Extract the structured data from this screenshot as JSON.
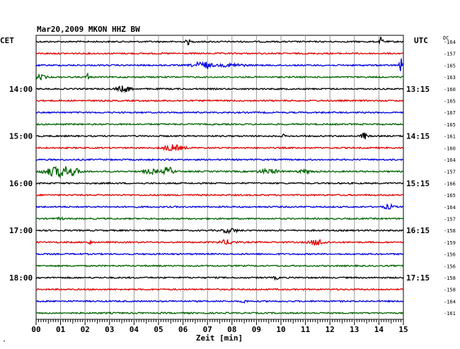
{
  "chart_data": {
    "type": "line",
    "title": "Mar20,2009   MKON HHZ BW",
    "xlabel": "Zeit [min]",
    "x_ticks": [
      "00",
      "01",
      "02",
      "03",
      "04",
      "05",
      "06",
      "07",
      "08",
      "09",
      "10",
      "11",
      "12",
      "13",
      "14",
      "15"
    ],
    "xlim": [
      0,
      15
    ],
    "left_timezone": "CET",
    "right_timezone": "UTC",
    "dc_label": "DC",
    "left_hour_labels": [
      {
        "label": "14:00",
        "row": 4
      },
      {
        "label": "15:00",
        "row": 8
      },
      {
        "label": "16:00",
        "row": 12
      },
      {
        "label": "17:00",
        "row": 16
      },
      {
        "label": "18:00",
        "row": 20
      }
    ],
    "right_hour_labels": [
      {
        "label": "13:15",
        "row": 4
      },
      {
        "label": "14:15",
        "row": 8
      },
      {
        "label": "15:15",
        "row": 12
      },
      {
        "label": "16:15",
        "row": 16
      },
      {
        "label": "17:15",
        "row": 20
      }
    ],
    "dc_offsets": [
      "-164",
      "-157",
      "-165",
      "-163",
      "-160",
      "-165",
      "-167",
      "-165",
      "-161",
      "-160",
      "-164",
      "-157",
      "-166",
      "-165",
      "-164",
      "-157",
      "-158",
      "-159",
      "-156",
      "-156",
      "-158",
      "-158",
      "-164",
      "-161"
    ],
    "trace_colors": [
      "#000000",
      "#e00000",
      "#0000e0",
      "#006400"
    ],
    "events": [
      {
        "row": 0,
        "t": 6.2,
        "amp": 4,
        "w": 0.08
      },
      {
        "row": 0,
        "t": 14.1,
        "amp": 7,
        "w": 0.06
      },
      {
        "row": 2,
        "t": 6.8,
        "amp": 5,
        "w": 0.35
      },
      {
        "row": 2,
        "t": 8.0,
        "amp": 2,
        "w": 0.5
      },
      {
        "row": 2,
        "t": 14.9,
        "amp": 10,
        "w": 0.06
      },
      {
        "row": 3,
        "t": 0.2,
        "amp": 3,
        "w": 0.2
      },
      {
        "row": 3,
        "t": 2.1,
        "amp": 6,
        "w": 0.04
      },
      {
        "row": 4,
        "t": 3.6,
        "amp": 4,
        "w": 0.3
      },
      {
        "row": 8,
        "t": 13.4,
        "amp": 5,
        "w": 0.12
      },
      {
        "row": 8,
        "t": 10.1,
        "amp": 2,
        "w": 0.05
      },
      {
        "row": 9,
        "t": 5.6,
        "amp": 4,
        "w": 0.4
      },
      {
        "row": 11,
        "t": 0.8,
        "amp": 6,
        "w": 0.5
      },
      {
        "row": 11,
        "t": 1.4,
        "amp": 5,
        "w": 0.4
      },
      {
        "row": 11,
        "t": 5.4,
        "amp": 6,
        "w": 0.2
      },
      {
        "row": 11,
        "t": 4.7,
        "amp": 3,
        "w": 0.3
      },
      {
        "row": 11,
        "t": 9.5,
        "amp": 3,
        "w": 0.4
      },
      {
        "row": 11,
        "t": 11.0,
        "amp": 2,
        "w": 0.3
      },
      {
        "row": 14,
        "t": 14.4,
        "amp": 3,
        "w": 0.2
      },
      {
        "row": 15,
        "t": 1.0,
        "amp": 2,
        "w": 0.1
      },
      {
        "row": 16,
        "t": 7.9,
        "amp": 3,
        "w": 0.3
      },
      {
        "row": 17,
        "t": 7.8,
        "amp": 3,
        "w": 0.3
      },
      {
        "row": 17,
        "t": 11.5,
        "amp": 4,
        "w": 0.3
      },
      {
        "row": 17,
        "t": 2.2,
        "amp": 2,
        "w": 0.1
      },
      {
        "row": 20,
        "t": 9.8,
        "amp": 2,
        "w": 0.1
      },
      {
        "row": 22,
        "t": 8.5,
        "amp": 2,
        "w": 0.1
      }
    ]
  },
  "footer_mark": "·"
}
